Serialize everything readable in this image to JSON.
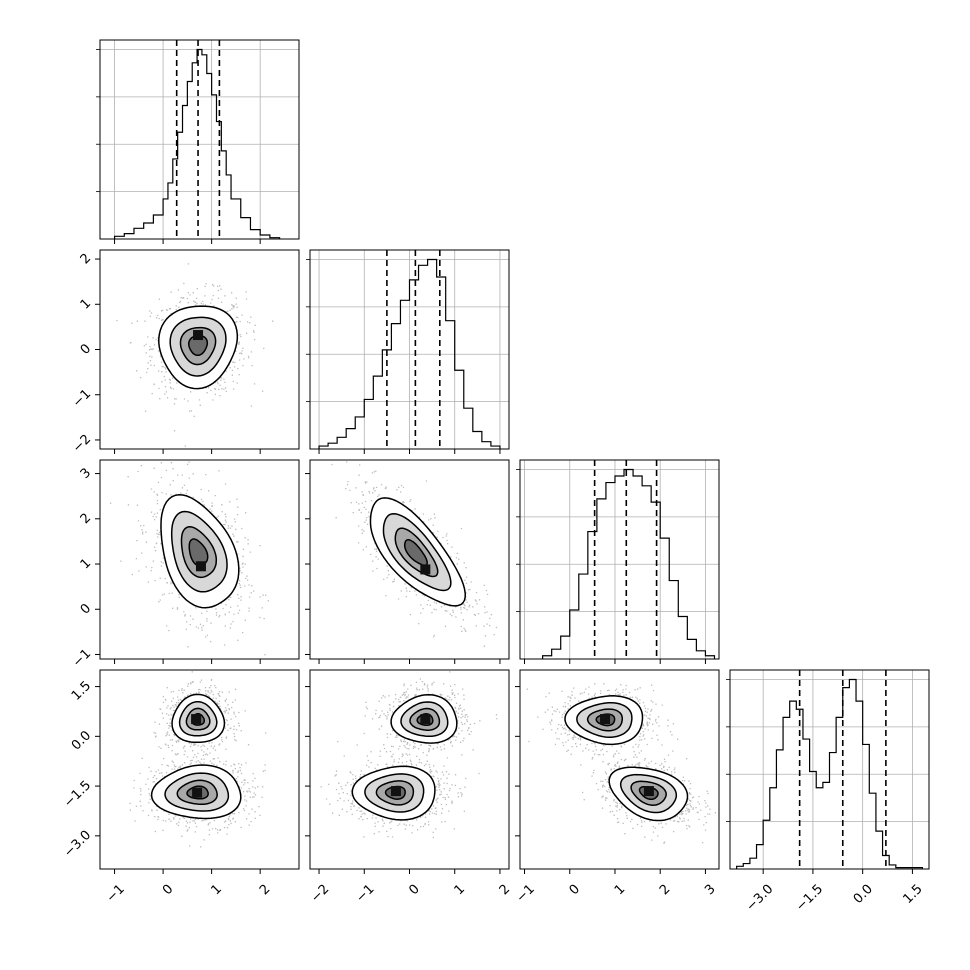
{
  "chart_data": {
    "type": "corner",
    "grid": true,
    "parameters": [
      {
        "range": [
          -1.3,
          2.8
        ],
        "ticks": [
          -1,
          0,
          1,
          2
        ],
        "tick_labels": [
          "−1",
          "0",
          "1",
          "2"
        ],
        "quantiles": [
          0.28,
          0.72,
          1.16
        ],
        "hist": {
          "type": "histogram",
          "bin_edges": [
            -1.0,
            -0.8,
            -0.6,
            -0.4,
            -0.2,
            0.0,
            0.1,
            0.2,
            0.3,
            0.4,
            0.5,
            0.6,
            0.7,
            0.8,
            0.9,
            1.0,
            1.1,
            1.2,
            1.3,
            1.4,
            1.6,
            1.8,
            2.0,
            2.2,
            2.4
          ],
          "counts": [
            2,
            4,
            8,
            12,
            18,
            30,
            42,
            60,
            80,
            100,
            118,
            132,
            142,
            138,
            124,
            108,
            88,
            66,
            48,
            30,
            16,
            7,
            3,
            1
          ]
        }
      },
      {
        "range": [
          -2.2,
          2.2
        ],
        "ticks": [
          -2,
          -1,
          0,
          1,
          2
        ],
        "tick_labels": [
          "−2",
          "−1",
          "0",
          "1",
          "2"
        ],
        "quantiles": [
          -0.5,
          0.13,
          0.67
        ],
        "hist": {
          "type": "histogram",
          "bin_edges": [
            -2.0,
            -1.8,
            -1.6,
            -1.4,
            -1.2,
            -1.0,
            -0.8,
            -0.6,
            -0.4,
            -0.2,
            0.0,
            0.2,
            0.4,
            0.6,
            0.8,
            1.0,
            1.2,
            1.4,
            1.6,
            1.8,
            2.0
          ],
          "counts": [
            2,
            4,
            8,
            14,
            22,
            34,
            50,
            68,
            86,
            102,
            116,
            126,
            130,
            118,
            88,
            54,
            28,
            12,
            5,
            2
          ]
        }
      },
      {
        "range": [
          -1.1,
          3.3
        ],
        "ticks": [
          -1,
          0,
          1,
          2,
          3
        ],
        "tick_labels": [
          "−1",
          "0",
          "1",
          "2",
          "3"
        ],
        "quantiles": [
          0.55,
          1.25,
          1.92
        ],
        "hist": {
          "type": "histogram",
          "bin_edges": [
            -0.6,
            -0.4,
            -0.2,
            0.0,
            0.2,
            0.4,
            0.6,
            0.8,
            1.0,
            1.2,
            1.4,
            1.6,
            1.8,
            2.0,
            2.2,
            2.4,
            2.6,
            2.8,
            3.0,
            3.2
          ],
          "counts": [
            2,
            6,
            14,
            30,
            52,
            78,
            98,
            108,
            112,
            116,
            112,
            106,
            96,
            74,
            48,
            26,
            12,
            5,
            2
          ]
        }
      },
      {
        "range": [
          -4.0,
          2.0
        ],
        "ticks": [
          -3.0,
          -1.5,
          0.0,
          1.5
        ],
        "tick_labels": [
          "−3.0",
          "−1.5",
          "0.0",
          "1.5"
        ],
        "quantiles": [
          -1.9,
          -0.6,
          0.7
        ],
        "hist": {
          "type": "histogram",
          "bin_edges": [
            -3.8,
            -3.6,
            -3.4,
            -3.2,
            -3.0,
            -2.8,
            -2.6,
            -2.4,
            -2.2,
            -2.0,
            -1.8,
            -1.6,
            -1.4,
            -1.2,
            -1.0,
            -0.8,
            -0.6,
            -0.4,
            -0.2,
            0.0,
            0.2,
            0.4,
            0.6,
            0.8,
            1.0,
            1.2,
            1.4,
            1.6,
            1.8
          ],
          "counts": [
            2,
            4,
            8,
            18,
            36,
            60,
            88,
            112,
            124,
            118,
            96,
            72,
            60,
            64,
            86,
            112,
            134,
            140,
            124,
            92,
            56,
            28,
            10,
            3,
            1,
            1,
            1,
            1
          ]
        }
      }
    ],
    "pairs": [
      {
        "row": 1,
        "col": 0,
        "blobs": [
          {
            "x": 0.72,
            "y": 0.1,
            "sx": 0.42,
            "sy": 0.48,
            "rho": 0.05,
            "peak": [
              0.72,
              0.32
            ]
          }
        ]
      },
      {
        "row": 2,
        "col": 0,
        "blobs": [
          {
            "x": 0.72,
            "y": 1.25,
            "sx": 0.42,
            "sy": 0.65,
            "rho": -0.35,
            "peak": [
              0.78,
              0.95
            ]
          }
        ]
      },
      {
        "row": 2,
        "col": 1,
        "blobs": [
          {
            "x": 0.13,
            "y": 1.25,
            "sx": 0.55,
            "sy": 0.62,
            "rho": -0.72,
            "peak": [
              0.35,
              0.88
            ]
          }
        ]
      },
      {
        "row": 3,
        "col": 0,
        "blobs": [
          {
            "x": 0.72,
            "y": 0.5,
            "sx": 0.28,
            "sy": 0.38,
            "rho": 0.0,
            "peak": [
              0.68,
              0.52
            ]
          },
          {
            "x": 0.72,
            "y": -1.7,
            "sx": 0.48,
            "sy": 0.42,
            "rho": 0.0,
            "peak": [
              0.7,
              -1.7
            ]
          }
        ]
      },
      {
        "row": 3,
        "col": 1,
        "blobs": [
          {
            "x": 0.35,
            "y": 0.5,
            "sx": 0.38,
            "sy": 0.38,
            "rho": 0.0,
            "peak": [
              0.35,
              0.52
            ]
          },
          {
            "x": -0.3,
            "y": -1.7,
            "sx": 0.48,
            "sy": 0.42,
            "rho": 0.0,
            "peak": [
              -0.3,
              -1.65
            ]
          }
        ]
      },
      {
        "row": 3,
        "col": 2,
        "blobs": [
          {
            "x": 0.8,
            "y": 0.5,
            "sx": 0.45,
            "sy": 0.38,
            "rho": 0.0,
            "peak": [
              0.78,
              0.52
            ]
          },
          {
            "x": 1.75,
            "y": -1.7,
            "sx": 0.45,
            "sy": 0.42,
            "rho": -0.3,
            "peak": [
              1.75,
              -1.65
            ]
          }
        ]
      }
    ]
  }
}
